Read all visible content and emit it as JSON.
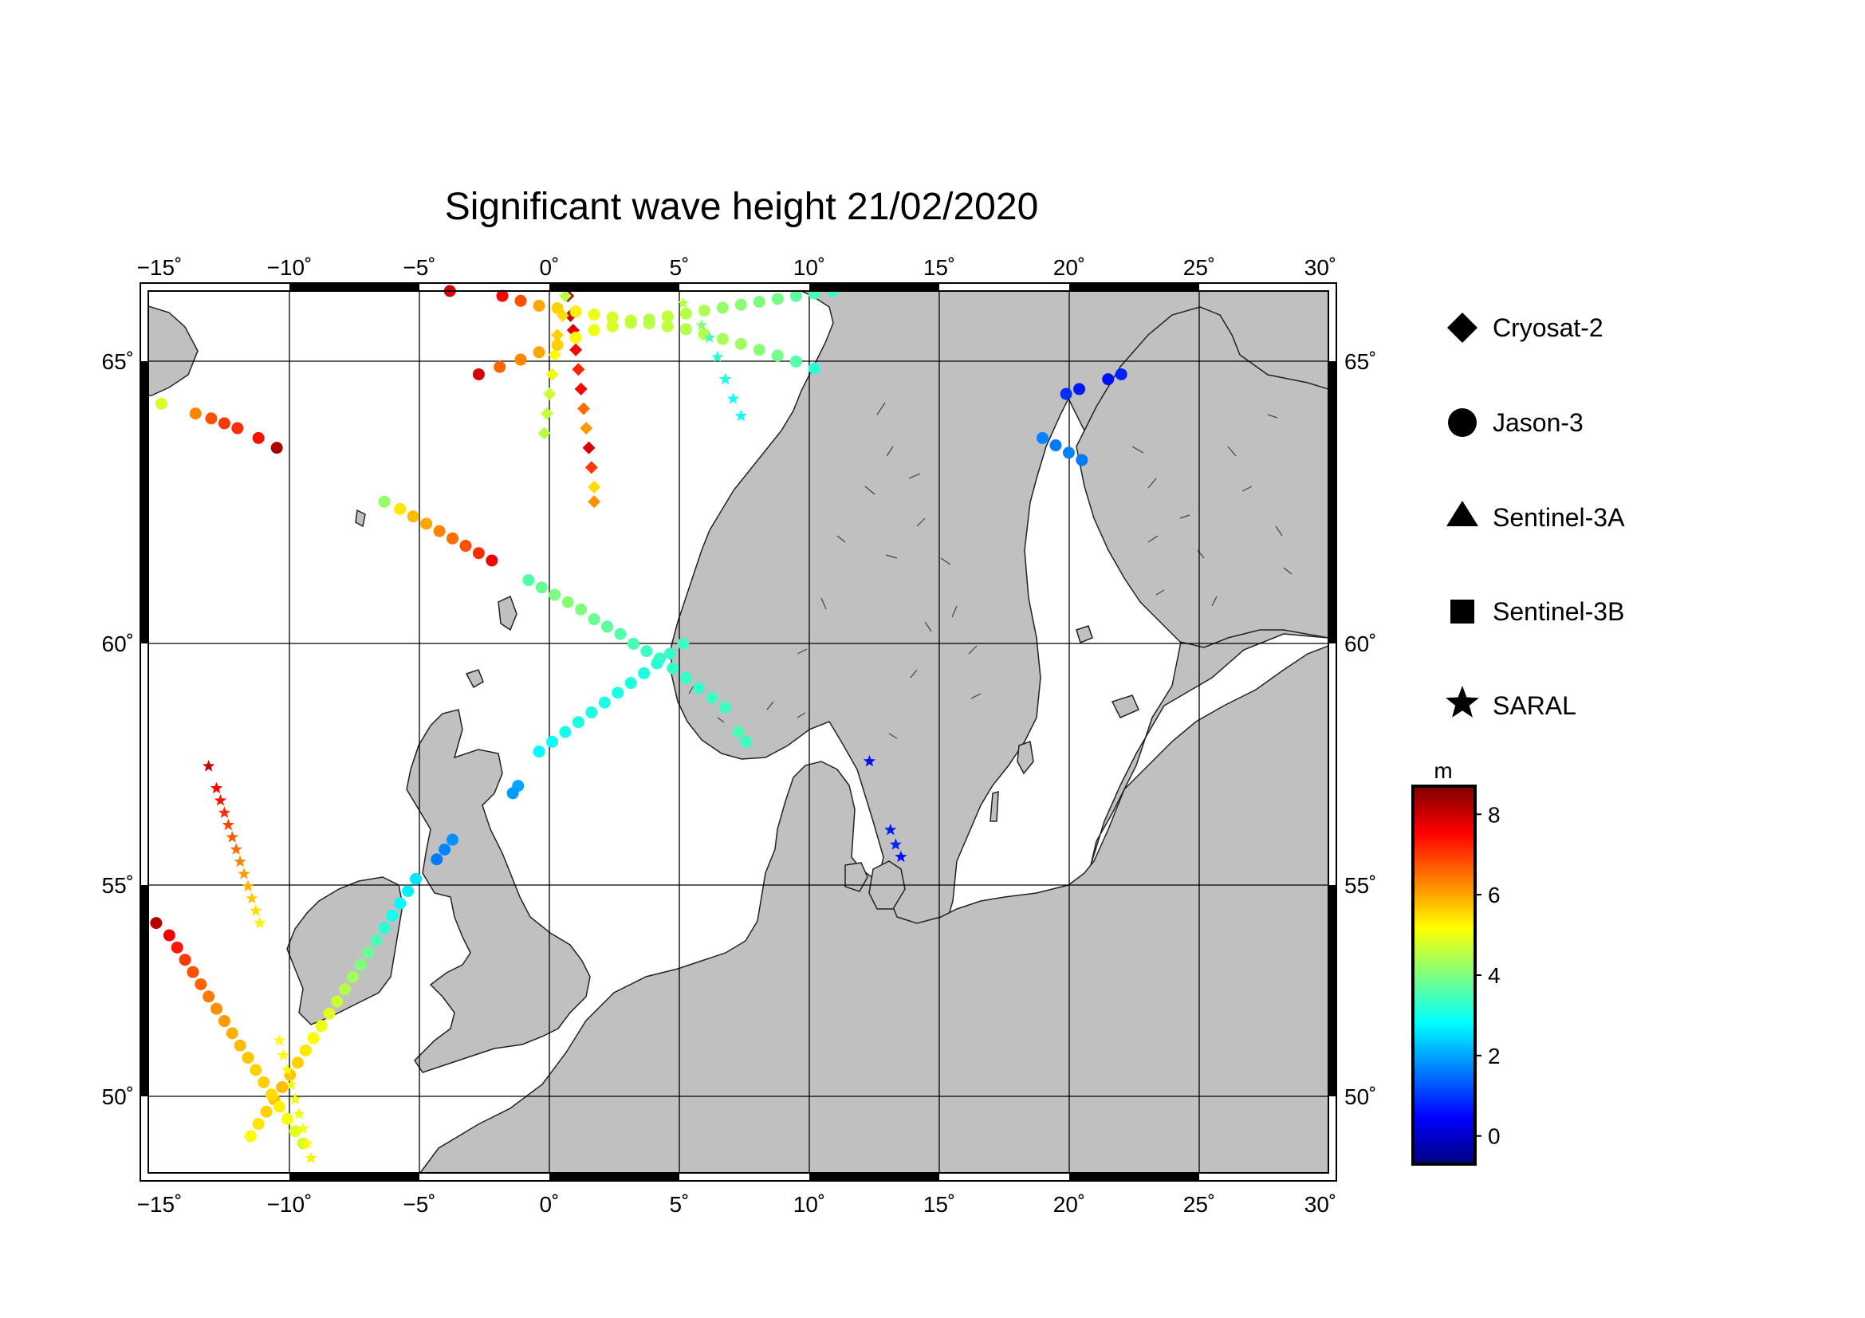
{
  "chart_data": {
    "type": "scatter",
    "title": "Significant wave height 21/02/2020",
    "projection": "equirectangular",
    "xlim": [
      -15,
      30
    ],
    "ylim": [
      48.3,
      66.3
    ],
    "x_ticks": [
      -15,
      -10,
      -5,
      0,
      5,
      10,
      15,
      20,
      25,
      30
    ],
    "y_ticks": [
      50,
      55,
      60,
      65
    ],
    "x_tick_labels": [
      "−15˚",
      "−10˚",
      "−5˚",
      "0˚",
      "5˚",
      "10˚",
      "15˚",
      "20˚",
      "25˚",
      "30˚"
    ],
    "y_tick_labels": [
      "50˚",
      "55˚",
      "60˚",
      "65˚"
    ],
    "grid": true,
    "land_color": "#c0c0c0",
    "sea_color": "#ffffff",
    "colorbar": {
      "label": "m",
      "range": [
        -0.7,
        8.7
      ],
      "ticks": [
        0,
        2,
        4,
        6,
        8
      ],
      "tick_labels": [
        "0",
        "2",
        "4",
        "6",
        "8"
      ],
      "colormap": "jet"
    },
    "legend": {
      "placement": "right",
      "entries": [
        {
          "name": "Cryosat-2",
          "marker": "diamond"
        },
        {
          "name": "Jason-3",
          "marker": "circle"
        },
        {
          "name": "Sentinel-3A",
          "marker": "triangle"
        },
        {
          "name": "Sentinel-3B",
          "marker": "square"
        },
        {
          "name": "SARAL",
          "marker": "star"
        }
      ]
    },
    "series": [
      {
        "name": "Cryosat-2",
        "marker": "diamond",
        "points": [
          [
            1.0,
            66.2,
            8.3
          ],
          [
            1.1,
            65.8,
            8.0
          ],
          [
            1.2,
            65.5,
            7.8
          ],
          [
            1.3,
            65.1,
            7.5
          ],
          [
            1.4,
            64.7,
            7.2
          ],
          [
            1.5,
            64.3,
            7.5
          ],
          [
            1.6,
            63.9,
            6.5
          ],
          [
            1.7,
            63.5,
            6.1
          ],
          [
            1.8,
            63.1,
            7.9
          ],
          [
            1.9,
            62.7,
            7.0
          ],
          [
            2.0,
            62.3,
            5.5
          ],
          [
            2.0,
            62.0,
            6.2
          ]
        ]
      },
      {
        "name": "Cryosat-2",
        "marker": "diamond",
        "points": [
          [
            0.9,
            66.2,
            4.5
          ],
          [
            0.8,
            65.8,
            5.5
          ],
          [
            0.6,
            65.4,
            5.6
          ],
          [
            0.5,
            65.0,
            5.2
          ],
          [
            0.4,
            64.6,
            5.0
          ],
          [
            0.3,
            64.2,
            4.7
          ],
          [
            0.2,
            63.8,
            4.6
          ],
          [
            0.1,
            63.4,
            4.5
          ]
        ]
      },
      {
        "name": "Jason-3",
        "marker": "circle",
        "points": [
          [
            -3.5,
            66.3,
            7.9
          ],
          [
            -1.5,
            66.2,
            7.5
          ],
          [
            -0.8,
            66.1,
            6.8
          ],
          [
            -0.1,
            66.0,
            6.0
          ],
          [
            0.6,
            65.95,
            5.6
          ],
          [
            1.3,
            65.88,
            5.3
          ],
          [
            2.0,
            65.82,
            5.0
          ],
          [
            2.7,
            65.76,
            4.8
          ],
          [
            3.4,
            65.7,
            4.7
          ],
          [
            4.1,
            65.64,
            4.6
          ],
          [
            4.8,
            65.58,
            4.6
          ],
          [
            5.5,
            65.52,
            4.5
          ],
          [
            6.2,
            65.42,
            4.5
          ],
          [
            6.9,
            65.32,
            4.4
          ],
          [
            7.6,
            65.22,
            4.3
          ],
          [
            8.3,
            65.1,
            4.1
          ],
          [
            9.0,
            64.98,
            3.9
          ],
          [
            9.7,
            64.86,
            3.6
          ],
          [
            10.4,
            64.72,
            3.2
          ]
        ]
      },
      {
        "name": "Jason-3",
        "marker": "circle",
        "points": [
          [
            -2.4,
            64.6,
            7.9
          ],
          [
            -1.6,
            64.75,
            6.6
          ],
          [
            -0.8,
            64.9,
            6.3
          ],
          [
            -0.1,
            65.05,
            6.0
          ],
          [
            0.6,
            65.2,
            5.6
          ],
          [
            1.3,
            65.35,
            5.2
          ],
          [
            2.0,
            65.5,
            5.0
          ],
          [
            2.7,
            65.58,
            4.8
          ],
          [
            3.4,
            65.65,
            4.6
          ],
          [
            4.1,
            65.72,
            4.5
          ],
          [
            4.8,
            65.78,
            4.6
          ],
          [
            5.5,
            65.84,
            4.5
          ],
          [
            6.2,
            65.9,
            4.4
          ],
          [
            6.9,
            65.96,
            4.2
          ],
          [
            7.6,
            66.02,
            4.1
          ],
          [
            8.3,
            66.08,
            4.0
          ],
          [
            9.0,
            66.14,
            3.9
          ],
          [
            9.7,
            66.2,
            3.7
          ],
          [
            10.4,
            66.25,
            3.5
          ],
          [
            11.1,
            66.3,
            3.3
          ]
        ]
      },
      {
        "name": "Jason-3",
        "marker": "circle",
        "points": [
          [
            -14.5,
            64.0,
            4.8
          ],
          [
            -13.2,
            63.8,
            6.3
          ],
          [
            -12.6,
            63.7,
            6.8
          ],
          [
            -12.1,
            63.6,
            7.0
          ],
          [
            -11.6,
            63.5,
            7.1
          ],
          [
            -10.8,
            63.3,
            7.4
          ],
          [
            -10.1,
            63.1,
            8.3
          ]
        ]
      },
      {
        "name": "Jason-3",
        "marker": "circle",
        "points": [
          [
            -6.0,
            62.0,
            4.2
          ],
          [
            -5.4,
            61.85,
            5.4
          ],
          [
            -4.9,
            61.7,
            5.8
          ],
          [
            -4.4,
            61.55,
            6.0
          ],
          [
            -3.9,
            61.4,
            6.3
          ],
          [
            -3.4,
            61.25,
            6.5
          ],
          [
            -2.9,
            61.1,
            6.8
          ],
          [
            -2.4,
            60.95,
            7.1
          ],
          [
            -1.9,
            60.8,
            7.6
          ]
        ]
      },
      {
        "name": "Jason-3",
        "marker": "circle",
        "points": [
          [
            -0.5,
            60.4,
            3.6
          ],
          [
            0.0,
            60.25,
            3.8
          ],
          [
            0.5,
            60.1,
            4.0
          ],
          [
            1.0,
            59.95,
            4.1
          ],
          [
            1.5,
            59.8,
            4.0
          ],
          [
            2.0,
            59.6,
            3.8
          ],
          [
            2.5,
            59.45,
            3.7
          ],
          [
            3.0,
            59.3,
            3.6
          ],
          [
            3.5,
            59.1,
            3.5
          ],
          [
            4.0,
            58.95,
            3.4
          ],
          [
            4.5,
            58.8,
            3.3
          ],
          [
            5.0,
            58.6,
            3.3
          ],
          [
            5.5,
            58.4,
            3.3
          ],
          [
            6.0,
            58.2,
            3.3
          ],
          [
            6.5,
            58.0,
            3.4
          ],
          [
            7.0,
            57.8,
            3.4
          ],
          [
            7.5,
            57.3,
            3.5
          ],
          [
            7.8,
            57.1,
            3.4
          ]
        ]
      },
      {
        "name": "Jason-3",
        "marker": "circle",
        "points": [
          [
            5.4,
            59.1,
            3.4
          ],
          [
            4.9,
            58.9,
            3.3
          ],
          [
            4.4,
            58.7,
            3.2
          ],
          [
            3.9,
            58.5,
            3.1
          ],
          [
            3.4,
            58.3,
            3.1
          ],
          [
            2.9,
            58.1,
            3.1
          ],
          [
            2.4,
            57.9,
            3.1
          ],
          [
            1.9,
            57.7,
            3.1
          ],
          [
            1.4,
            57.5,
            3.1
          ],
          [
            0.9,
            57.3,
            3.0
          ],
          [
            0.4,
            57.1,
            2.9
          ],
          [
            -0.1,
            56.9,
            2.8
          ],
          [
            -0.9,
            56.2,
            2.0
          ],
          [
            -1.1,
            56.05,
            1.9
          ]
        ]
      },
      {
        "name": "Jason-3",
        "marker": "circle",
        "points": [
          [
            -3.4,
            55.1,
            1.8
          ],
          [
            -3.7,
            54.9,
            1.7
          ],
          [
            -4.0,
            54.7,
            1.6
          ],
          [
            -4.8,
            54.3,
            2.6
          ],
          [
            -5.1,
            54.05,
            2.7
          ],
          [
            -5.4,
            53.8,
            2.8
          ],
          [
            -5.7,
            53.55,
            3.0
          ],
          [
            -6.0,
            53.3,
            3.2
          ],
          [
            -6.3,
            53.05,
            3.5
          ],
          [
            -6.6,
            52.8,
            3.8
          ],
          [
            -6.9,
            52.55,
            4.0
          ],
          [
            -7.2,
            52.3,
            4.3
          ],
          [
            -7.5,
            52.05,
            4.5
          ],
          [
            -7.8,
            51.8,
            4.7
          ],
          [
            -8.1,
            51.55,
            4.9
          ],
          [
            -8.4,
            51.3,
            5.0
          ],
          [
            -8.7,
            51.05,
            5.2
          ],
          [
            -9.0,
            50.8,
            5.4
          ],
          [
            -9.3,
            50.55,
            5.6
          ],
          [
            -9.6,
            50.3,
            5.7
          ],
          [
            -9.9,
            50.05,
            5.8
          ],
          [
            -10.2,
            49.8,
            5.7
          ],
          [
            -10.5,
            49.55,
            5.6
          ],
          [
            -10.8,
            49.3,
            5.4
          ],
          [
            -11.1,
            49.05,
            5.2
          ]
        ]
      },
      {
        "name": "Jason-3",
        "marker": "circle",
        "points": [
          [
            -14.7,
            53.4,
            8.2
          ],
          [
            -14.2,
            53.15,
            7.6
          ],
          [
            -13.9,
            52.9,
            7.3
          ],
          [
            -13.6,
            52.65,
            7.0
          ],
          [
            -13.3,
            52.4,
            6.8
          ],
          [
            -13.0,
            52.15,
            6.6
          ],
          [
            -12.7,
            51.9,
            6.4
          ],
          [
            -12.4,
            51.65,
            6.2
          ],
          [
            -12.1,
            51.4,
            6.1
          ],
          [
            -11.8,
            51.15,
            5.9
          ],
          [
            -11.5,
            50.9,
            5.8
          ],
          [
            -11.2,
            50.65,
            5.7
          ],
          [
            -10.9,
            50.4,
            5.6
          ],
          [
            -10.6,
            50.15,
            5.6
          ],
          [
            -10.3,
            49.9,
            5.5
          ],
          [
            -10.0,
            49.65,
            5.3
          ],
          [
            -9.7,
            49.4,
            5.1
          ],
          [
            -9.4,
            49.15,
            4.9
          ],
          [
            -9.1,
            48.9,
            4.8
          ]
        ]
      },
      {
        "name": "Jason-3",
        "marker": "circle",
        "points": [
          [
            20.0,
            64.2,
            0.9
          ],
          [
            20.5,
            64.3,
            0.7
          ],
          [
            21.6,
            64.5,
            0.6
          ],
          [
            22.1,
            64.6,
            0.8
          ],
          [
            19.1,
            63.3,
            1.7
          ],
          [
            19.6,
            63.15,
            1.6
          ],
          [
            20.1,
            63.0,
            1.7
          ],
          [
            20.6,
            62.85,
            1.6
          ]
        ]
      },
      {
        "name": "SARAL",
        "marker": "star",
        "points": [
          [
            -12.7,
            56.6,
            8.0
          ],
          [
            -12.4,
            56.15,
            7.5
          ],
          [
            -12.25,
            55.9,
            7.3
          ],
          [
            -12.1,
            55.65,
            7.1
          ],
          [
            -11.95,
            55.4,
            6.9
          ],
          [
            -11.8,
            55.15,
            6.7
          ],
          [
            -11.65,
            54.9,
            6.5
          ],
          [
            -11.5,
            54.65,
            6.3
          ],
          [
            -11.35,
            54.4,
            6.1
          ],
          [
            -11.2,
            54.15,
            5.9
          ],
          [
            -11.05,
            53.9,
            5.7
          ],
          [
            -10.9,
            53.65,
            5.5
          ],
          [
            -10.75,
            53.4,
            5.3
          ]
        ]
      },
      {
        "name": "SARAL",
        "marker": "star",
        "points": [
          [
            -10.0,
            51.0,
            5.2
          ],
          [
            -9.85,
            50.7,
            5.2
          ],
          [
            -9.7,
            50.4,
            5.1
          ],
          [
            -9.55,
            50.1,
            5.0
          ],
          [
            -9.4,
            49.8,
            5.0
          ],
          [
            -9.25,
            49.5,
            5.0
          ],
          [
            -9.1,
            49.2,
            5.1
          ],
          [
            -8.95,
            48.9,
            5.2
          ],
          [
            -8.8,
            48.6,
            5.3
          ]
        ]
      },
      {
        "name": "SARAL",
        "marker": "star",
        "points": [
          [
            5.4,
            66.05,
            4.5
          ],
          [
            6.1,
            65.6,
            4.1
          ],
          [
            6.4,
            65.35,
            3.5
          ],
          [
            6.7,
            64.95,
            3.2
          ],
          [
            7.0,
            64.5,
            3.1
          ],
          [
            7.3,
            64.1,
            3.0
          ],
          [
            7.6,
            63.75,
            2.9
          ]
        ]
      },
      {
        "name": "SARAL",
        "marker": "star",
        "points": [
          [
            12.5,
            56.7,
            0.6
          ],
          [
            13.3,
            55.3,
            0.7
          ],
          [
            13.5,
            55.0,
            0.8
          ],
          [
            13.7,
            54.75,
            0.6
          ]
        ]
      }
    ]
  }
}
